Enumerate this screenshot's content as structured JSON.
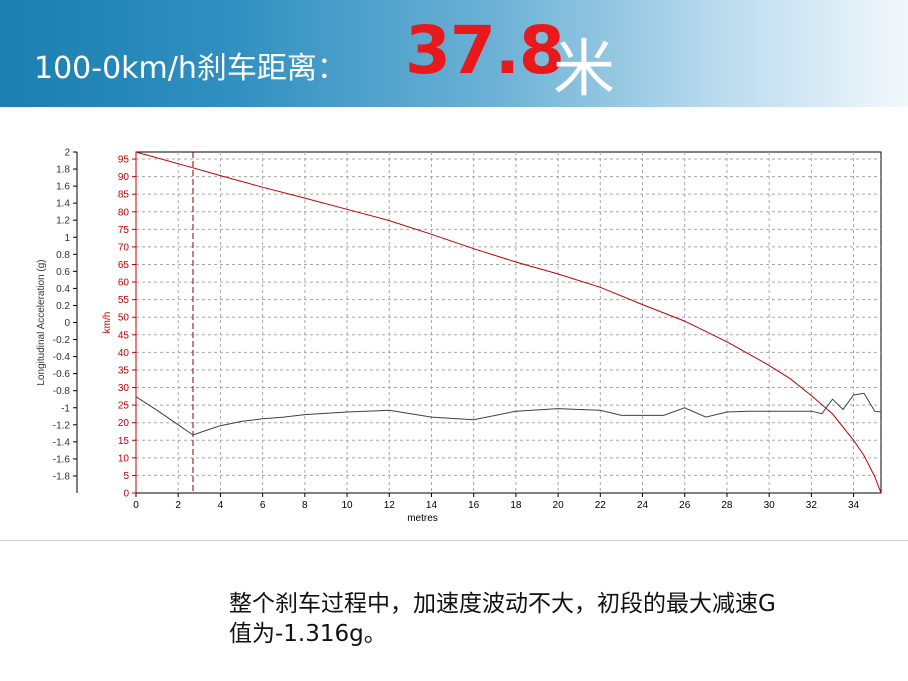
{
  "header": {
    "title": "100-0km/h刹车距离：",
    "value": "37.8",
    "unit": "米"
  },
  "caption": {
    "line1": "整个刹车过程中，加速度波动不大，初段的最大减速G",
    "line2": "值为-1.316g。"
  },
  "chart_data": {
    "type": "line",
    "xlabel": "metres",
    "ylabel_left": "Longitudinal Acceleration (g)",
    "ylabel_right": "km/h",
    "xlim": [
      0,
      35.3
    ],
    "ylim_speed": [
      0,
      97
    ],
    "ylim_accel": [
      -2,
      2
    ],
    "x_ticks": [
      "0",
      "2",
      "4",
      "6",
      "8",
      "10",
      "12",
      "14",
      "16",
      "18",
      "20",
      "22",
      "24",
      "26",
      "28",
      "30",
      "32",
      "34"
    ],
    "speed_ticks": [
      "0",
      "5",
      "10",
      "15",
      "20",
      "25",
      "30",
      "35",
      "40",
      "45",
      "50",
      "55",
      "60",
      "65",
      "70",
      "75",
      "80",
      "85",
      "90",
      "95"
    ],
    "accel_ticks": [
      "2",
      "1.8",
      "1.6",
      "1.4",
      "1.2",
      "1",
      "0.8",
      "0.6",
      "0.4",
      "0.2",
      "0",
      "-0.2",
      "-0.4",
      "-0.6",
      "-0.8",
      "-1",
      "-1.2",
      "-1.4",
      "-1.6",
      "-1.8"
    ],
    "grid": true,
    "marker_x": 2.7,
    "colors": {
      "speed": "#c00000",
      "accel": "#404040",
      "marker": "#8b0000",
      "grid": "#a8a8a8"
    },
    "series": [
      {
        "axis": "speed",
        "x": [
          0,
          2.7,
          4,
          6,
          8,
          10,
          12,
          14,
          16,
          18,
          20,
          22,
          24,
          26,
          28,
          30,
          31,
          32,
          33,
          34,
          34.5,
          35,
          35.3
        ],
        "values": [
          97,
          92.5,
          90.3,
          87,
          83.9,
          80.7,
          77.5,
          73.6,
          69.5,
          65.7,
          62.3,
          58.5,
          53.6,
          48.9,
          43,
          36.3,
          32.5,
          27.7,
          22.5,
          15,
          10.6,
          4.7,
          0
        ]
      },
      {
        "axis": "accel",
        "x": [
          0,
          1,
          2,
          2.7,
          3.5,
          4,
          5,
          6,
          7,
          8,
          10,
          12,
          14,
          16,
          18,
          20,
          21,
          22,
          23,
          24,
          25,
          26,
          27,
          28,
          29,
          30,
          31,
          32,
          32.5,
          33,
          33.5,
          34,
          34.5,
          35,
          35.3
        ],
        "values": [
          -0.87,
          -1.03,
          -1.2,
          -1.32,
          -1.25,
          -1.21,
          -1.16,
          -1.13,
          -1.11,
          -1.08,
          -1.05,
          -1.03,
          -1.11,
          -1.14,
          -1.04,
          -1.01,
          -1.02,
          -1.03,
          -1.09,
          -1.09,
          -1.09,
          -1.0,
          -1.11,
          -1.05,
          -1.04,
          -1.04,
          -1.04,
          -1.04,
          -1.07,
          -0.9,
          -1.02,
          -0.85,
          -0.83,
          -1.04,
          -1.05
        ]
      }
    ]
  }
}
